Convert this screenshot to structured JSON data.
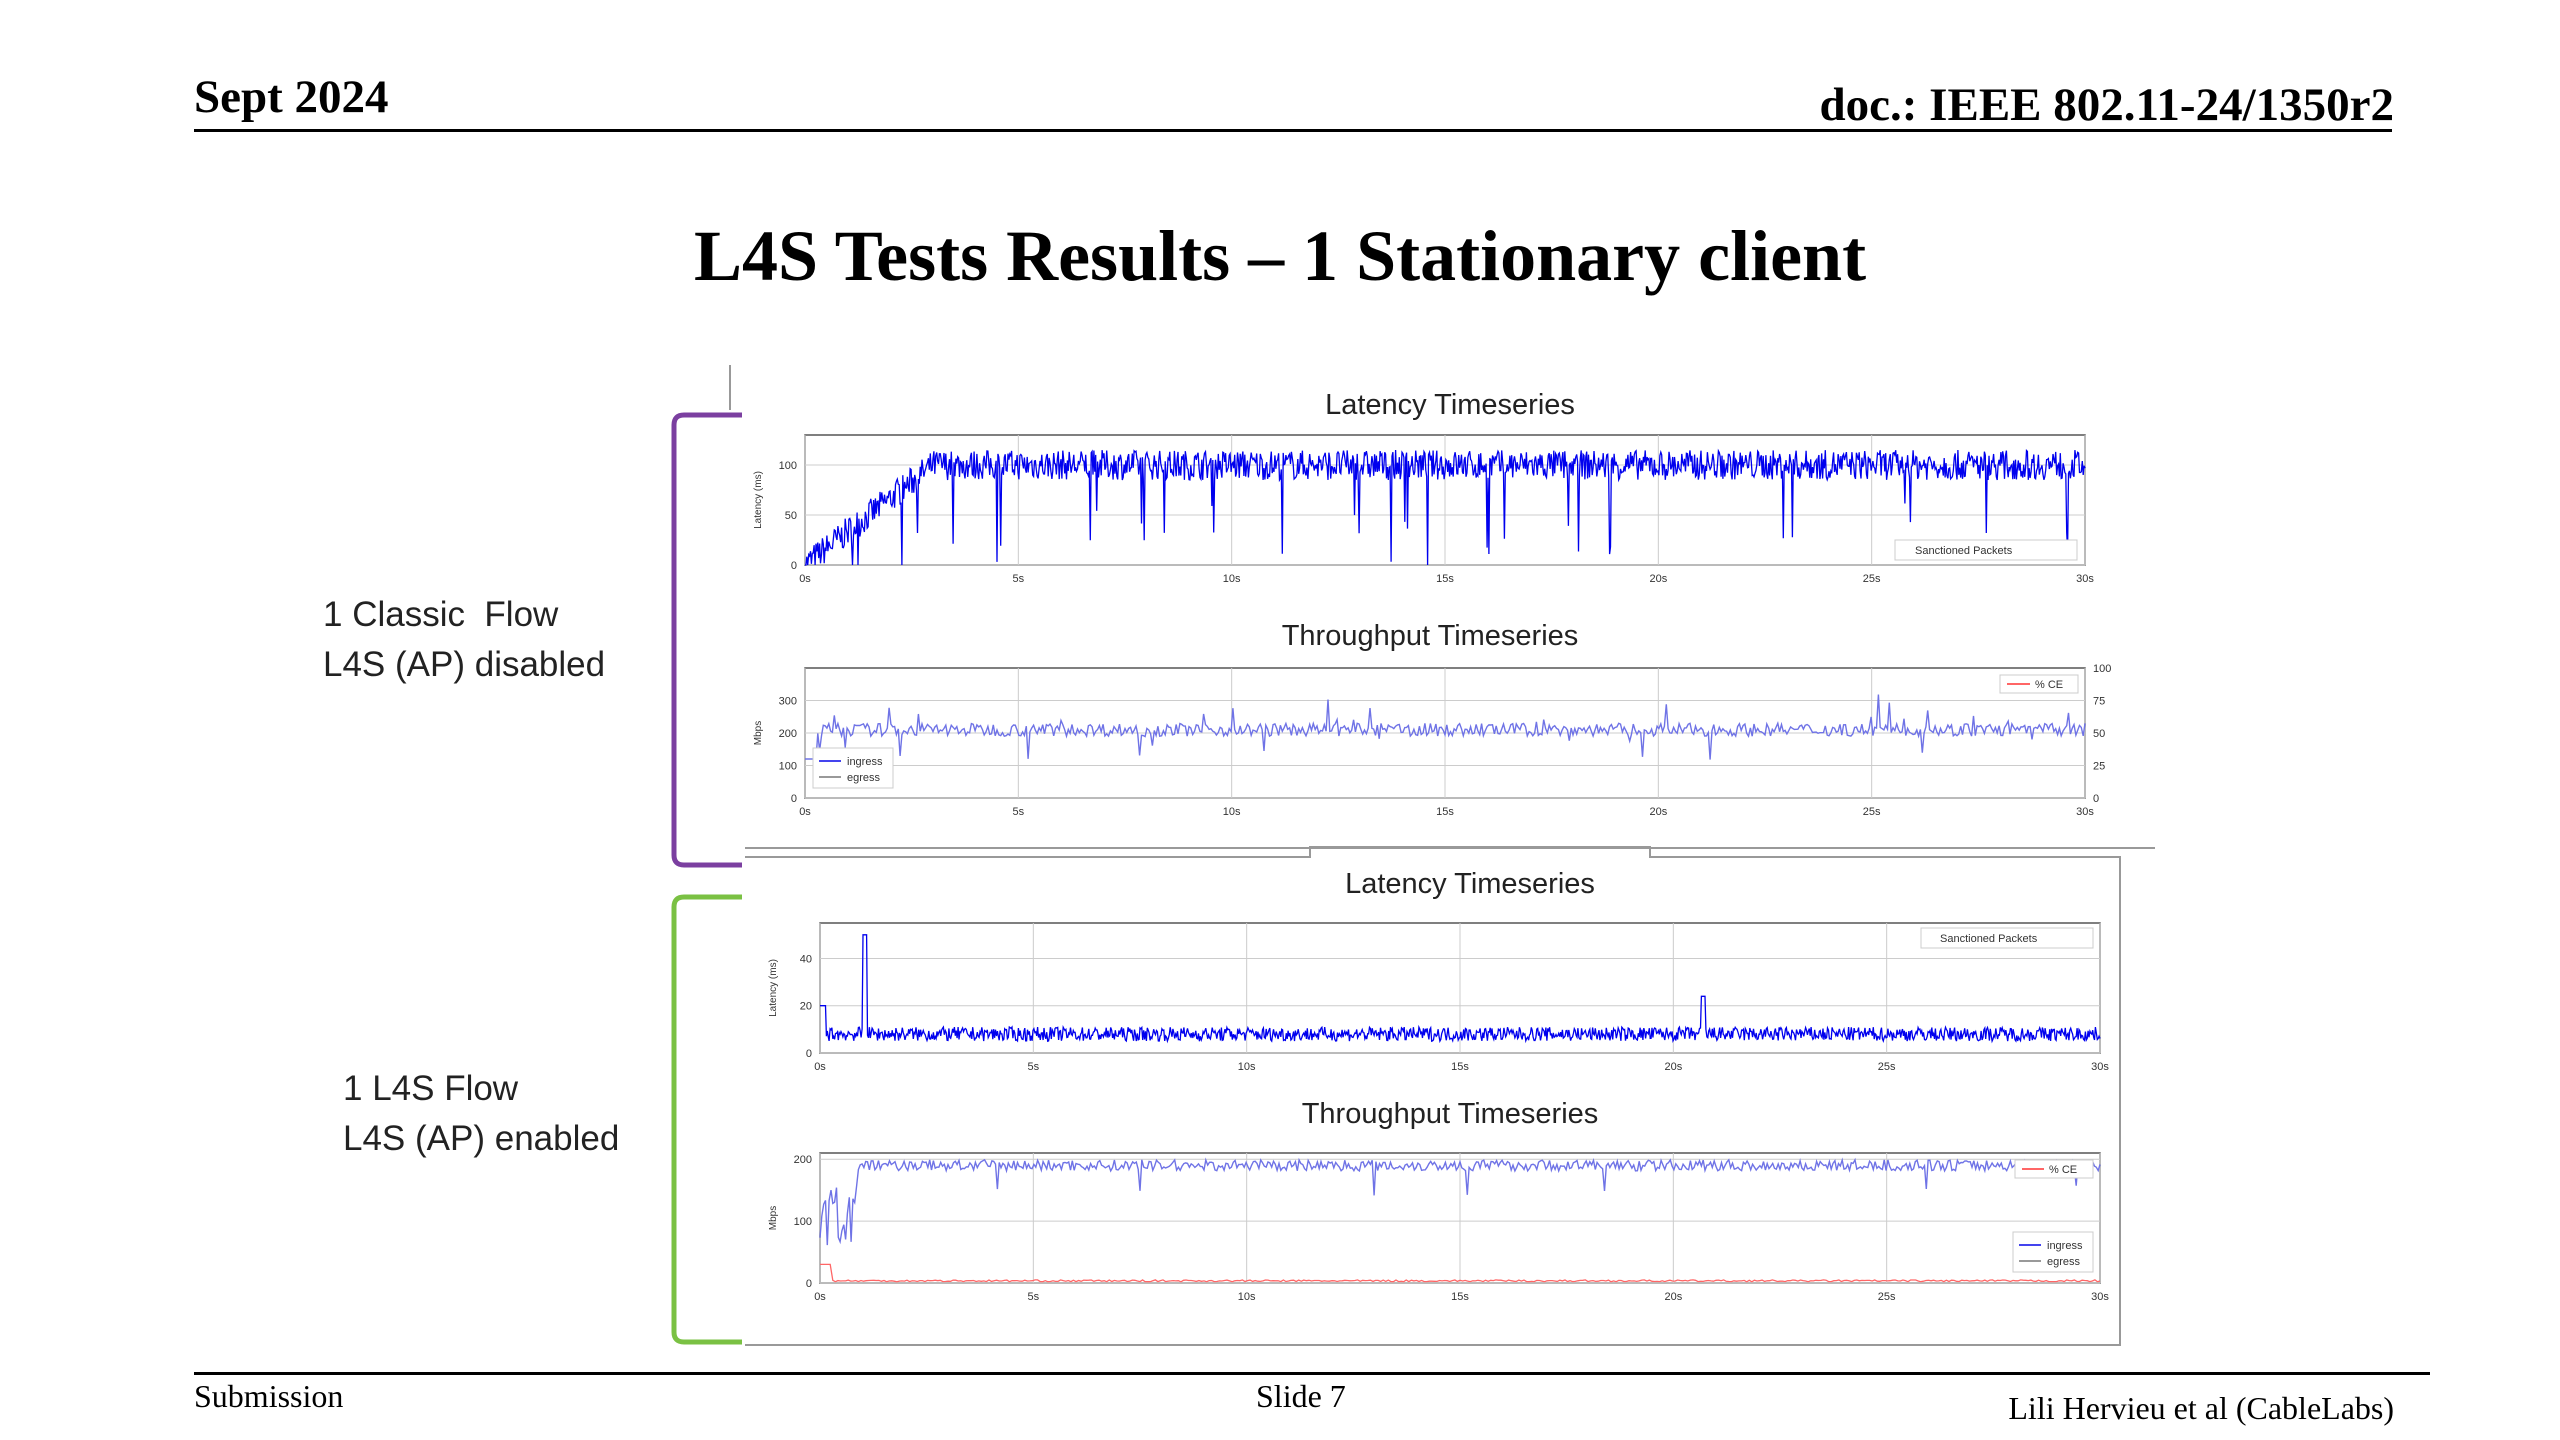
{
  "header": {
    "date": "Sept 2024",
    "doc": "doc.: IEEE 802.11-24/1350r2"
  },
  "slide": {
    "title": "L4S Tests Results – 1 Stationary client"
  },
  "groups": [
    {
      "line1": "1 Classic  Flow",
      "line2": "L4S (AP) disabled",
      "bracket_color": "#7b3fa0",
      "latency": {
        "title": "Latency Timeseries",
        "ylabel": "Latency (ms)",
        "yticks": [
          "0",
          "50",
          "100"
        ],
        "ymax": 130,
        "legend": [
          "Sanctioned Packets"
        ],
        "xticks": [
          "0s",
          "5s",
          "10s",
          "15s",
          "20s",
          "25s",
          "30s"
        ]
      },
      "throughput": {
        "title": "Throughput Timeseries",
        "ylabel": "Mbps",
        "yticks": [
          "0",
          "100",
          "200",
          "300"
        ],
        "ymax": 400,
        "y2ticks": [
          "0",
          "25",
          "50",
          "75",
          "100"
        ],
        "legend_series": [
          "ingress",
          "egress"
        ],
        "legend_ce": "% CE",
        "xticks": [
          "0s",
          "5s",
          "10s",
          "15s",
          "20s",
          "25s",
          "30s"
        ]
      }
    },
    {
      "line1": "1 L4S Flow",
      "line2": "L4S (AP) enabled",
      "bracket_color": "#7ac143",
      "latency": {
        "title": "Latency Timeseries",
        "ylabel": "Latency (ms)",
        "yticks": [
          "0",
          "20",
          "40"
        ],
        "ymax": 55,
        "legend": [
          "Sanctioned Packets"
        ],
        "xticks": [
          "0s",
          "5s",
          "10s",
          "15s",
          "20s",
          "25s",
          "30s"
        ]
      },
      "throughput": {
        "title": "Throughput Timeseries",
        "ylabel": "Mbps",
        "yticks": [
          "0",
          "100",
          "200"
        ],
        "ymax": 210,
        "legend_series": [
          "ingress",
          "egress"
        ],
        "legend_ce": "% CE",
        "xticks": [
          "0s",
          "5s",
          "10s",
          "15s",
          "20s",
          "25s",
          "30s"
        ]
      }
    }
  ],
  "footer": {
    "left": "Submission",
    "center": "Slide 7",
    "right": "Lili Hervieu et al (CableLabs)"
  },
  "colors": {
    "series": "#0000ee",
    "ingress_light": "#6f73e6",
    "ce": "#ff6666",
    "grid": "#cccccc"
  }
}
